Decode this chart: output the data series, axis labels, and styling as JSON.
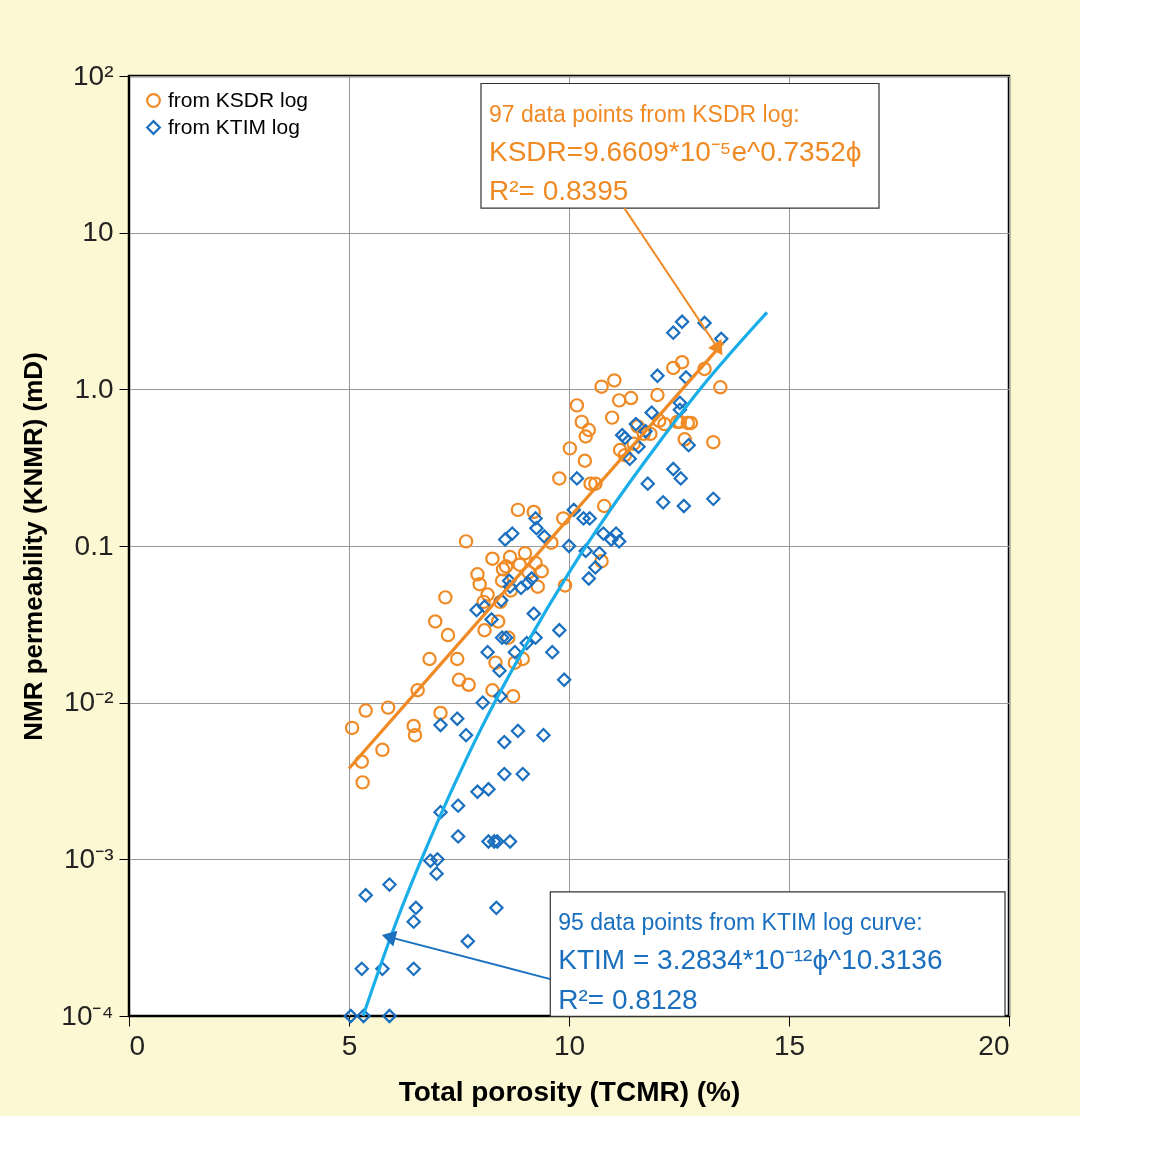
{
  "chart_data": {
    "type": "scatter",
    "xlabel": "Total porosity (TCMR) (%)",
    "ylabel": "NMR permeability (KNMR) (mD)",
    "xlim": [
      0,
      20
    ],
    "xticks": [
      0,
      5,
      10,
      15,
      20
    ],
    "ylim": [
      0.0001,
      100
    ],
    "yticks": [
      {
        "value": 100,
        "label": "10²"
      },
      10,
      {
        "value": 1,
        "label": "1.0"
      },
      0.1,
      {
        "value": 0.01,
        "label": "10⁻²"
      },
      {
        "value": 0.001,
        "label": "10⁻³"
      },
      {
        "value": 0.0001,
        "label": "10⁻⁴"
      }
    ],
    "log": "y",
    "grid": true,
    "legend": "top left",
    "series": [
      {
        "name": "from KSDR log",
        "marker": "circle",
        "color": "#f08a24",
        "x": [
          5.07,
          5.38,
          5.29,
          5.31,
          5.76,
          5.89,
          6.47,
          6.5,
          6.56,
          6.83,
          6.96,
          7.08,
          7.19,
          7.25,
          7.46,
          7.5,
          7.66,
          7.72,
          7.92,
          7.97,
          8.06,
          8.08,
          8.15,
          8.26,
          8.26,
          8.33,
          8.39,
          8.44,
          8.48,
          8.5,
          8.57,
          8.62,
          8.66,
          8.68,
          8.73,
          8.77,
          8.84,
          8.88,
          8.95,
          9.0,
          9.08,
          9.2,
          9.24,
          9.29,
          9.38,
          9.6,
          9.78,
          9.87,
          9.91,
          10.02,
          10.18,
          10.29,
          10.38,
          10.45,
          10.36,
          10.49,
          10.6,
          10.74,
          10.8,
          10.74,
          10.98,
          11.03,
          11.14,
          11.16,
          11.27,
          11.41,
          11.47,
          11.56,
          11.7,
          11.85,
          12.01,
          12.05,
          12.17,
          12.37,
          12.46,
          12.52,
          12.57,
          12.63,
          12.7,
          12.77,
          13.08,
          13.28,
          13.44
        ],
        "values": [
          0.0069,
          0.0089,
          0.0042,
          0.0031,
          0.005,
          0.0093,
          0.0071,
          0.0062,
          0.012,
          0.019,
          0.033,
          0.0086,
          0.047,
          0.027,
          0.019,
          0.014,
          0.107,
          0.013,
          0.066,
          0.057,
          0.044,
          0.029,
          0.049,
          0.083,
          0.012,
          0.018,
          0.033,
          0.044,
          0.06,
          0.071,
          0.074,
          0.026,
          0.085,
          0.052,
          0.011,
          0.018,
          0.17,
          0.076,
          0.019,
          0.09,
          0.068,
          0.165,
          0.078,
          0.055,
          0.069,
          0.105,
          0.27,
          0.15,
          0.056,
          0.42,
          0.79,
          0.62,
          0.5,
          0.55,
          0.35,
          0.25,
          0.25,
          1.04,
          0.18,
          0.08,
          0.66,
          1.14,
          0.85,
          0.41,
          0.38,
          0.88,
          0.45,
          0.58,
          0.52,
          0.52,
          0.92,
          0.63,
          0.6,
          1.37,
          0.62,
          0.62,
          1.49,
          0.48,
          0.61,
          0.61,
          1.35,
          0.46,
          1.03
        ]
      },
      {
        "name": "from KTIM log",
        "marker": "diamond",
        "color": "#1a6fbf",
        "x": [
          5.04,
          5.33,
          5.92,
          5.29,
          5.76,
          6.47,
          5.38,
          5.92,
          6.52,
          6.47,
          7.7,
          8.35,
          6.85,
          7.01,
          6.99,
          7.08,
          7.48,
          7.48,
          8.17,
          8.3,
          8.37,
          8.66,
          7.92,
          8.17,
          8.53,
          8.95,
          8.53,
          8.84,
          9.42,
          7.08,
          7.46,
          7.66,
          8.04,
          8.44,
          8.77,
          8.42,
          8.91,
          9.04,
          9.62,
          9.78,
          9.89,
          8.48,
          8.57,
          9.2,
          9.24,
          7.9,
          8.08,
          8.15,
          8.24,
          8.46,
          8.64,
          8.66,
          8.71,
          8.55,
          9.06,
          9.15,
          9.26,
          9.24,
          9.44,
          10.0,
          10.11,
          10.18,
          10.33,
          10.38,
          10.47,
          10.45,
          10.6,
          10.69,
          10.78,
          10.96,
          11.07,
          11.14,
          11.21,
          11.27,
          11.38,
          11.52,
          11.58,
          11.74,
          11.88,
          12.01,
          11.79,
          12.14,
          12.37,
          12.54,
          12.61,
          12.52,
          12.52,
          12.66,
          12.72,
          12.37,
          12.57,
          13.08,
          13.46,
          13.28
        ],
        "values": [
          0.0001,
          0.0001,
          0.0001,
          0.0002,
          0.0002,
          0.0002,
          0.00059,
          0.00069,
          0.00049,
          0.0004,
          0.0003,
          0.00049,
          0.00098,
          0.001,
          0.00081,
          0.002,
          0.0022,
          0.0014,
          0.0013,
          0.0013,
          0.0013,
          0.0013,
          0.0027,
          0.0028,
          0.0035,
          0.0035,
          0.0056,
          0.0066,
          0.0062,
          0.0072,
          0.0079,
          0.0062,
          0.01,
          0.011,
          0.021,
          0.016,
          0.054,
          0.024,
          0.021,
          0.029,
          0.014,
          0.026,
          0.026,
          0.037,
          0.026,
          0.039,
          0.041,
          0.021,
          0.034,
          0.045,
          0.06,
          0.055,
          0.12,
          0.11,
          0.058,
          0.062,
          0.13,
          0.15,
          0.115,
          0.1,
          0.17,
          0.27,
          0.15,
          0.093,
          0.15,
          0.062,
          0.073,
          0.09,
          0.12,
          0.11,
          0.12,
          0.107,
          0.51,
          0.49,
          0.36,
          0.6,
          0.43,
          0.54,
          0.71,
          1.22,
          0.25,
          0.19,
          0.31,
          0.27,
          0.18,
          0.74,
          0.82,
          1.19,
          0.44,
          2.3,
          2.7,
          2.65,
          2.1,
          0.2
        ]
      },
      {
        "type": "line",
        "line_style": "solid",
        "color": "#f08a24",
        "x": [
          5.0,
          13.5
        ],
        "values": [
          0.0038,
          1.98
        ]
      },
      {
        "type": "line",
        "line_style": "solid",
        "color": "#1aaee8",
        "x": [
          5.32,
          6,
          7,
          8,
          9,
          10,
          11,
          12,
          13,
          14.5
        ],
        "values": [
          0.0001,
          0.00035,
          0.0017,
          0.0068,
          0.0227,
          0.0676,
          0.18,
          0.44,
          1.02,
          3.1
        ]
      }
    ],
    "annotations": [
      {
        "text": "97 data points from KSDR log:\nKSDR=9.6609*10⁻⁵e^0.7352ϕ\nR²= 0.8395",
        "x": 13.4,
        "y": 1.8
      },
      {
        "text": "95 data points from KTIM log curve:\nKTIM = 3.2834*10⁻¹²ϕ^10.3136\nR²= 0.8128",
        "x": 5.9,
        "y": 0.00032
      }
    ]
  }
}
